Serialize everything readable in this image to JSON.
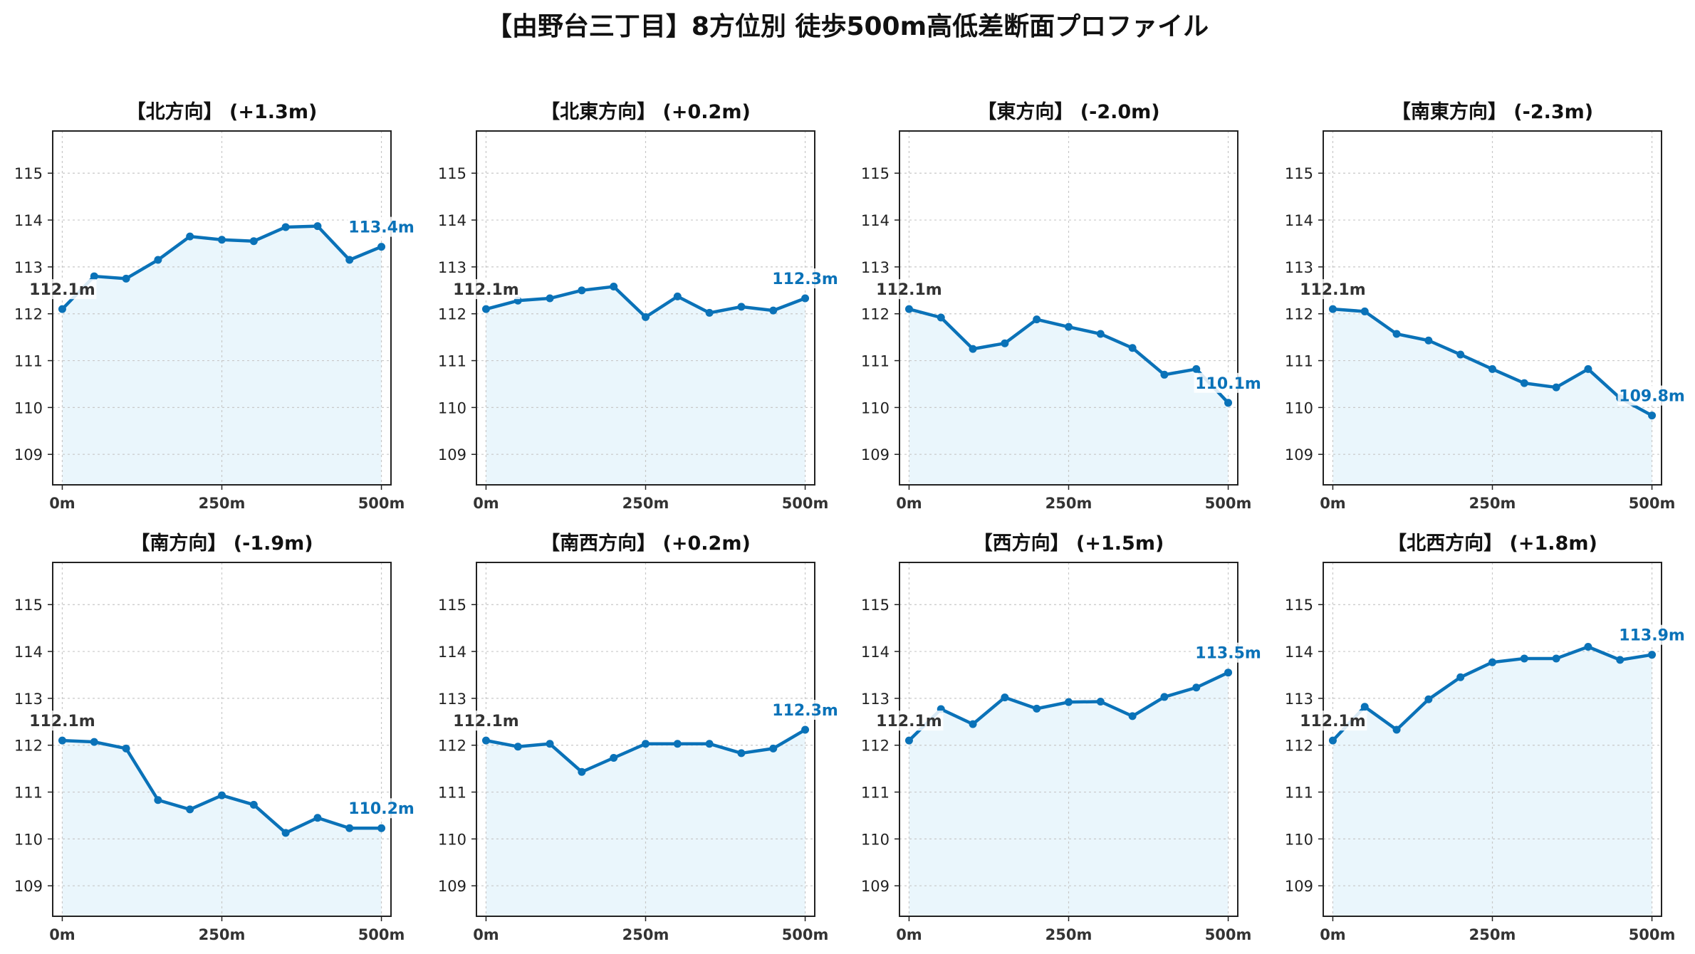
{
  "title": "【由野台三丁目】8方位別 徒歩500m高低差断面プロファイル",
  "colors": {
    "line": "#0a72b8",
    "fill": "#eaf6fc",
    "grid": "#c8c8c8",
    "start_label": "#333333",
    "end_label": "#0a72b8"
  },
  "chart_data": [
    {
      "type": "area",
      "title": "【北方向】 (+1.3m)",
      "x": [
        0,
        50,
        100,
        150,
        200,
        250,
        300,
        350,
        400,
        450,
        500
      ],
      "y": [
        112.1,
        112.8,
        112.75,
        113.15,
        113.65,
        113.58,
        113.55,
        113.85,
        113.87,
        113.15,
        113.43
      ],
      "start_label": "112.1m",
      "end_label": "113.4m",
      "xticks": [
        "0m",
        "250m",
        "500m"
      ],
      "yticks": [
        109,
        110,
        111,
        112,
        113,
        114,
        115
      ],
      "ylim": [
        108.35,
        115.9
      ],
      "xlim": [
        -15,
        515
      ],
      "grid": true
    },
    {
      "type": "area",
      "title": "【北東方向】 (+0.2m)",
      "x": [
        0,
        50,
        100,
        150,
        200,
        250,
        300,
        350,
        400,
        450,
        500
      ],
      "y": [
        112.1,
        112.28,
        112.33,
        112.5,
        112.58,
        111.93,
        112.37,
        112.02,
        112.15,
        112.07,
        112.33
      ],
      "start_label": "112.1m",
      "end_label": "112.3m",
      "xticks": [
        "0m",
        "250m",
        "500m"
      ],
      "yticks": [
        109,
        110,
        111,
        112,
        113,
        114,
        115
      ],
      "ylim": [
        108.35,
        115.9
      ],
      "xlim": [
        -15,
        515
      ],
      "grid": true
    },
    {
      "type": "area",
      "title": "【東方向】 (-2.0m)",
      "x": [
        0,
        50,
        100,
        150,
        200,
        250,
        300,
        350,
        400,
        450,
        500
      ],
      "y": [
        112.1,
        111.92,
        111.25,
        111.37,
        111.88,
        111.72,
        111.57,
        111.27,
        110.7,
        110.82,
        110.1
      ],
      "start_label": "112.1m",
      "end_label": "110.1m",
      "xticks": [
        "0m",
        "250m",
        "500m"
      ],
      "yticks": [
        109,
        110,
        111,
        112,
        113,
        114,
        115
      ],
      "ylim": [
        108.35,
        115.9
      ],
      "xlim": [
        -15,
        515
      ],
      "grid": true
    },
    {
      "type": "area",
      "title": "【南東方向】 (-2.3m)",
      "x": [
        0,
        50,
        100,
        150,
        200,
        250,
        300,
        350,
        400,
        450,
        500
      ],
      "y": [
        112.1,
        112.05,
        111.57,
        111.43,
        111.13,
        110.82,
        110.52,
        110.43,
        110.82,
        110.2,
        109.83
      ],
      "start_label": "112.1m",
      "end_label": "109.8m",
      "xticks": [
        "0m",
        "250m",
        "500m"
      ],
      "yticks": [
        109,
        110,
        111,
        112,
        113,
        114,
        115
      ],
      "ylim": [
        108.35,
        115.9
      ],
      "xlim": [
        -15,
        515
      ],
      "grid": true
    },
    {
      "type": "area",
      "title": "【南方向】 (-1.9m)",
      "x": [
        0,
        50,
        100,
        150,
        200,
        250,
        300,
        350,
        400,
        450,
        500
      ],
      "y": [
        112.1,
        112.07,
        111.93,
        110.83,
        110.63,
        110.93,
        110.73,
        110.13,
        110.45,
        110.23,
        110.23
      ],
      "start_label": "112.1m",
      "end_label": "110.2m",
      "xticks": [
        "0m",
        "250m",
        "500m"
      ],
      "yticks": [
        109,
        110,
        111,
        112,
        113,
        114,
        115
      ],
      "ylim": [
        108.35,
        115.9
      ],
      "xlim": [
        -15,
        515
      ],
      "grid": true
    },
    {
      "type": "area",
      "title": "【南西方向】 (+0.2m)",
      "x": [
        0,
        50,
        100,
        150,
        200,
        250,
        300,
        350,
        400,
        450,
        500
      ],
      "y": [
        112.1,
        111.97,
        112.03,
        111.43,
        111.73,
        112.03,
        112.03,
        112.03,
        111.83,
        111.93,
        112.33
      ],
      "start_label": "112.1m",
      "end_label": "112.3m",
      "xticks": [
        "0m",
        "250m",
        "500m"
      ],
      "yticks": [
        109,
        110,
        111,
        112,
        113,
        114,
        115
      ],
      "ylim": [
        108.35,
        115.9
      ],
      "xlim": [
        -15,
        515
      ],
      "grid": true
    },
    {
      "type": "area",
      "title": "【西方向】 (+1.5m)",
      "x": [
        0,
        50,
        100,
        150,
        200,
        250,
        300,
        350,
        400,
        450,
        500
      ],
      "y": [
        112.1,
        112.77,
        112.45,
        113.02,
        112.78,
        112.92,
        112.93,
        112.62,
        113.03,
        113.23,
        113.55
      ],
      "start_label": "112.1m",
      "end_label": "113.5m",
      "xticks": [
        "0m",
        "250m",
        "500m"
      ],
      "yticks": [
        109,
        110,
        111,
        112,
        113,
        114,
        115
      ],
      "ylim": [
        108.35,
        115.9
      ],
      "xlim": [
        -15,
        515
      ],
      "grid": true
    },
    {
      "type": "area",
      "title": "【北西方向】 (+1.8m)",
      "x": [
        0,
        50,
        100,
        150,
        200,
        250,
        300,
        350,
        400,
        450,
        500
      ],
      "y": [
        112.1,
        112.82,
        112.33,
        112.98,
        113.45,
        113.77,
        113.85,
        113.85,
        114.1,
        113.82,
        113.93
      ],
      "start_label": "112.1m",
      "end_label": "113.9m",
      "xticks": [
        "0m",
        "250m",
        "500m"
      ],
      "yticks": [
        109,
        110,
        111,
        112,
        113,
        114,
        115
      ],
      "ylim": [
        108.35,
        115.9
      ],
      "xlim": [
        -15,
        515
      ],
      "grid": true
    }
  ]
}
